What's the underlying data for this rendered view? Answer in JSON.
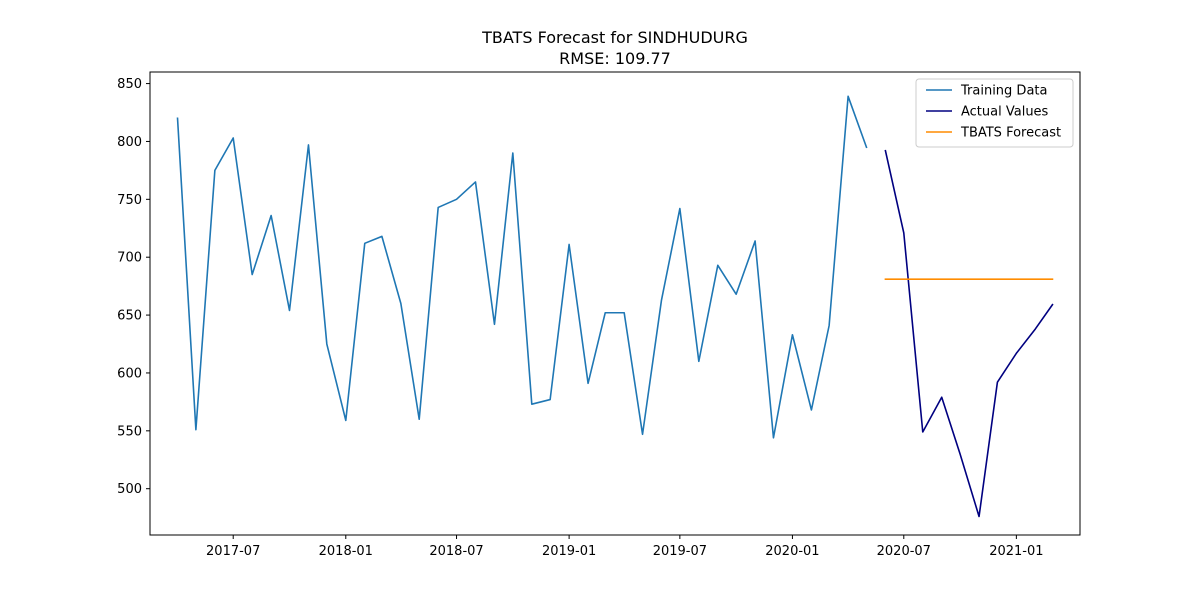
{
  "chart_data": {
    "type": "line",
    "title": "TBATS Forecast for SINDHUDURG",
    "subtitle": "RMSE: 109.77",
    "xlabel": "",
    "ylabel": "",
    "x_range": [
      "2017-02-15",
      "2021-04-15"
    ],
    "ylim": [
      460,
      860
    ],
    "x_ticks": [
      "2017-07",
      "2018-01",
      "2018-07",
      "2019-01",
      "2019-07",
      "2020-01",
      "2020-07",
      "2021-01"
    ],
    "y_ticks": [
      500,
      550,
      600,
      650,
      700,
      750,
      800,
      850
    ],
    "grid": false,
    "legend_position": "top-right",
    "series": [
      {
        "name": "Training Data",
        "color": "#1f77b4",
        "points": [
          [
            "2017-04",
            820
          ],
          [
            "2017-05",
            551
          ],
          [
            "2017-06",
            775
          ],
          [
            "2017-07",
            803
          ],
          [
            "2017-08",
            685
          ],
          [
            "2017-09",
            736
          ],
          [
            "2017-10",
            654
          ],
          [
            "2017-11",
            797
          ],
          [
            "2017-12",
            625
          ],
          [
            "2018-01",
            559
          ],
          [
            "2018-02",
            712
          ],
          [
            "2018-03",
            718
          ],
          [
            "2018-04",
            660
          ],
          [
            "2018-05",
            560
          ],
          [
            "2018-06",
            743
          ],
          [
            "2018-07",
            750
          ],
          [
            "2018-08",
            765
          ],
          [
            "2018-09",
            642
          ],
          [
            "2018-10",
            790
          ],
          [
            "2018-11",
            573
          ],
          [
            "2018-12",
            577
          ],
          [
            "2019-01",
            711
          ],
          [
            "2019-02",
            591
          ],
          [
            "2019-03",
            652
          ],
          [
            "2019-04",
            652
          ],
          [
            "2019-05",
            547
          ],
          [
            "2019-06",
            663
          ],
          [
            "2019-07",
            742
          ],
          [
            "2019-08",
            610
          ],
          [
            "2019-09",
            693
          ],
          [
            "2019-10",
            668
          ],
          [
            "2019-11",
            714
          ],
          [
            "2019-12",
            544
          ],
          [
            "2020-01",
            633
          ],
          [
            "2020-02",
            568
          ],
          [
            "2020-03",
            641
          ],
          [
            "2020-04",
            839
          ],
          [
            "2020-05",
            795
          ]
        ]
      },
      {
        "name": "Actual Values",
        "color": "#000080",
        "points": [
          [
            "2020-06",
            792
          ],
          [
            "2020-07",
            721
          ],
          [
            "2020-08",
            549
          ],
          [
            "2020-09",
            579
          ],
          [
            "2020-10",
            530
          ],
          [
            "2020-11",
            476
          ],
          [
            "2020-12",
            592
          ],
          [
            "2021-01",
            617
          ],
          [
            "2021-02",
            638
          ],
          [
            "2021-03",
            659
          ]
        ]
      },
      {
        "name": "TBATS Forecast",
        "color": "#ff8c00",
        "points": [
          [
            "2020-06",
            681
          ],
          [
            "2020-07",
            681
          ],
          [
            "2020-08",
            681
          ],
          [
            "2020-09",
            681
          ],
          [
            "2020-10",
            681
          ],
          [
            "2020-11",
            681
          ],
          [
            "2020-12",
            681
          ],
          [
            "2021-01",
            681
          ],
          [
            "2021-02",
            681
          ],
          [
            "2021-03",
            681
          ]
        ]
      }
    ]
  }
}
